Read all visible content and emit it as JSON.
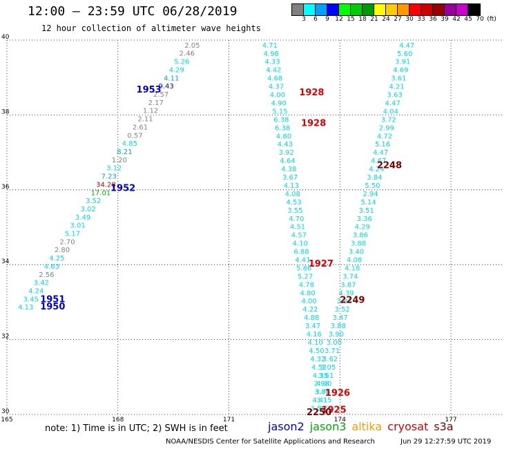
{
  "header": {
    "title": "12:00 – 23:59 UTC 06/28/2019",
    "subtitle": "12 hour collection of altimeter wave heights"
  },
  "colorbar": {
    "colors": [
      "#808080",
      "#00ffff",
      "#00a0ff",
      "#0000ff",
      "#00ff00",
      "#00cc00",
      "#009900",
      "#ffff00",
      "#ffcc00",
      "#ff9900",
      "#ff0000",
      "#cc0000",
      "#990000",
      "#990099",
      "#cc00cc",
      "#000000"
    ],
    "labels": [
      "3",
      "6",
      "9",
      "12",
      "15",
      "18",
      "21",
      "24",
      "27",
      "30",
      "33",
      "36",
      "39",
      "42",
      "45",
      "70",
      "(ft)"
    ]
  },
  "axes": {
    "lon_ticks": [
      "165",
      "168",
      "171",
      "174",
      "177"
    ],
    "lat_ticks": [
      "30",
      "32",
      "34",
      "36",
      "38",
      "40"
    ]
  },
  "tracks": [
    {
      "id": "t1950",
      "pass": "1950",
      "pass_color": "#0000ff",
      "pass_lat": 32.8,
      "start": [
        165.3,
        32.8
      ],
      "end": [
        169.8,
        39.8
      ],
      "color": "#00d8e8",
      "values": [
        "4.13",
        "3.45",
        "4.24",
        "3.42",
        "2.56",
        "4.63",
        "4.25",
        "2.80",
        "2.70",
        "5.17",
        "3.01",
        "3.49",
        "3.02",
        "3.52",
        "17.01",
        "34.28",
        "7.23",
        "3.12",
        "1.20",
        "8.21",
        "4.85",
        "0.57",
        "2.61",
        "2.11",
        "1.12",
        "2.17",
        "2.57",
        "9.43",
        "4.11",
        "4.29",
        "5.26",
        "2.46",
        "2.05"
      ],
      "value_colors": [
        "#00d8e8",
        "#00d8e8",
        "#00d8e8",
        "#00d8e8",
        "#808080",
        "#00d8e8",
        "#00d8e8",
        "#808080",
        "#808080",
        "#00d8e8",
        "#00d8e8",
        "#00d8e8",
        "#00d8e8",
        "#00d8e8",
        "#00aa00",
        "#cc0000",
        "#00a0ff",
        "#00d8e8",
        "#808080",
        "#00a0ff",
        "#00d8e8",
        "#808080",
        "#808080",
        "#808080",
        "#808080",
        "#808080",
        "#808080",
        "#0000aa",
        "#00a0ff",
        "#00d8e8",
        "#00d8e8",
        "#808080",
        "#808080"
      ]
    },
    {
      "id": "t1951",
      "pass": "1951",
      "pass_color": "#0000ff",
      "pass_lat": 32.95
    },
    {
      "id": "t1952",
      "pass": "1952",
      "pass_color": "#0000ff",
      "pass_lat": 35.97
    },
    {
      "id": "t1953",
      "pass": "1953",
      "pass_color": "#0000ff",
      "pass_lat": 38.6
    },
    {
      "id": "t1928",
      "pass": "1928",
      "pass_color": "#cc0000",
      "start": [
        171.9,
        39.8
      ],
      "end": [
        173.4,
        30.1
      ],
      "values": [
        "4.71",
        "4.98",
        "4.33",
        "4.42",
        "4.68",
        "4.37",
        "4.00",
        "4.90",
        "5.15",
        "6.38",
        "6.38",
        "4.80",
        "4.43",
        "3.92",
        "4.64",
        "4.38",
        "3.67",
        "4.13",
        "4.08",
        "4.53",
        "3.55",
        "4.70",
        "4.51",
        "4.57",
        "4.10",
        "6.88",
        "4.41",
        "5.86",
        "5.27",
        "4.78",
        "4.80",
        "4.00",
        "4.22",
        "4.88",
        "3.47",
        "4.16",
        "4.10",
        "4.50",
        "4.32",
        "4.52",
        "4.35",
        "2.98",
        "3.75",
        "3.15",
        "3.55"
      ]
    },
    {
      "id": "t2248",
      "pass": "2248",
      "pass_color": "#800000",
      "start": [
        175.6,
        39.8
      ],
      "end": [
        173.2,
        30.1
      ],
      "values": [
        "4.47",
        "5.60",
        "3.91",
        "4.69",
        "3.61",
        "4.21",
        "3.63",
        "4.47",
        "4.04",
        "3.72",
        "2.99",
        "4.72",
        "5.16",
        "4.47",
        "4.67",
        "4.24",
        "3.84",
        "5.50",
        "2.94",
        "5.14",
        "3.51",
        "3.36",
        "4.29",
        "3.86",
        "3.88",
        "3.40",
        "4.08",
        "4.18",
        "3.74",
        "3.87",
        "4.39",
        "3.83",
        "3.52",
        "3.47",
        "3.88",
        "3.90",
        "3.00",
        "3.71",
        "3.62",
        "3.05",
        "3.61",
        "4.00",
        "3.80",
        "4.41",
        "3.59"
      ]
    }
  ],
  "pass_labels": [
    {
      "text": "1950",
      "color": "#0000cc",
      "lon": 165.9,
      "lat": 32.8
    },
    {
      "text": "1951",
      "color": "#0000cc",
      "lon": 165.9,
      "lat": 33.0
    },
    {
      "text": "1952",
      "color": "#0000cc",
      "lon": 167.8,
      "lat": 35.97
    },
    {
      "text": "1953",
      "color": "#0000cc",
      "lon": 168.5,
      "lat": 38.6
    },
    {
      "text": "1928",
      "color": "#dd0000",
      "lon": 172.9,
      "lat": 38.52
    },
    {
      "text": "1928",
      "color": "#dd0000",
      "lon": 172.95,
      "lat": 37.7
    },
    {
      "text": "1927",
      "color": "#dd0000",
      "lon": 173.15,
      "lat": 33.95
    },
    {
      "text": "1926",
      "color": "#dd0000",
      "lon": 173.6,
      "lat": 30.5
    },
    {
      "text": "1925",
      "color": "#dd0000",
      "lon": 173.5,
      "lat": 30.05
    },
    {
      "text": "2250",
      "color": "#800000",
      "lon": 173.1,
      "lat": 29.98
    },
    {
      "text": "2248",
      "color": "#800000",
      "lon": 175.0,
      "lat": 36.58
    },
    {
      "text": "2249",
      "color": "#800000",
      "lon": 174.0,
      "lat": 32.98
    }
  ],
  "footer": {
    "note": "note: 1) Time is in UTC; 2) SWH is in feet",
    "satellites": [
      {
        "name": "jason2",
        "color": "#0000cc"
      },
      {
        "name": "jason3",
        "color": "#00aa00"
      },
      {
        "name": "altika",
        "color": "#ff9900"
      },
      {
        "name": "cryosat",
        "color": "#dd0000"
      },
      {
        "name": "s3a",
        "color": "#800000"
      }
    ],
    "credit": "NOAA/NESDIS Center for Satellite Applications and Research",
    "timestamp": "Jun 29 12:27:59 UTC 2019"
  }
}
